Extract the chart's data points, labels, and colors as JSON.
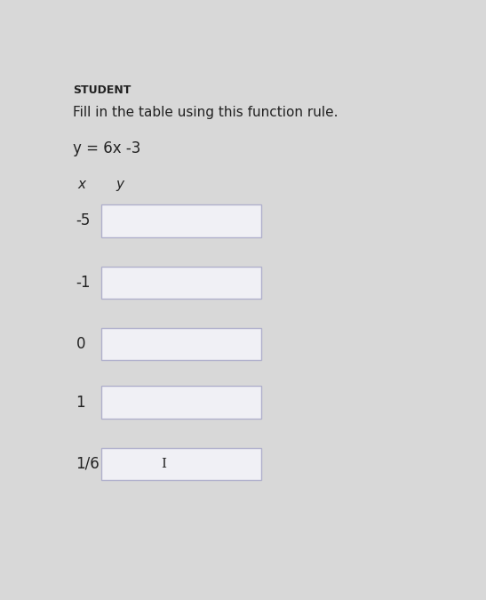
{
  "title_label": "STUDENT",
  "instruction": "Fill in the table using this function rule.",
  "function_rule": "y = 6x -3",
  "col_x_label": "x",
  "col_y_label": "y",
  "x_values": [
    "-5",
    "-1",
    "0",
    "1",
    "1/6"
  ],
  "background_color": "#d8d8d8",
  "box_fill_color": "#f0f0f5",
  "box_edge_color": "#b0b0cc",
  "text_color": "#222222",
  "title_fontsize": 9,
  "instruction_fontsize": 11,
  "rule_fontsize": 12,
  "label_fontsize": 11,
  "x_label_fontsize": 12
}
